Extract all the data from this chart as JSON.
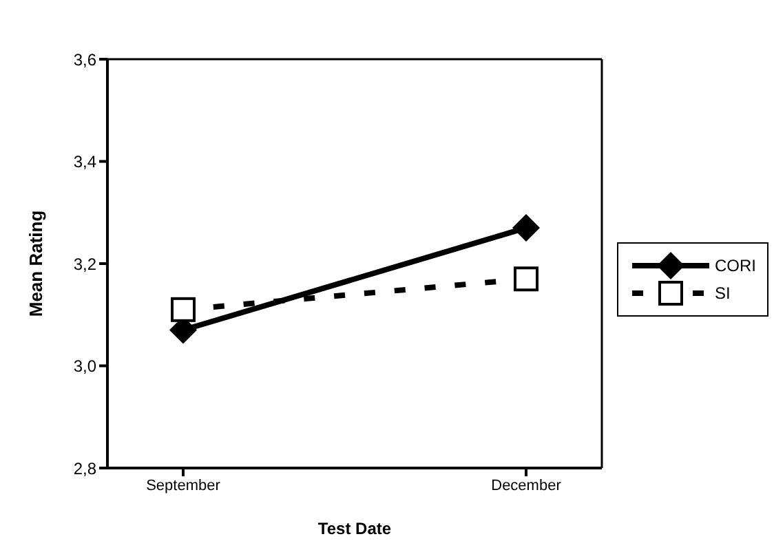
{
  "chart_data": {
    "type": "line",
    "xlabel": "Test Date",
    "ylabel": "Mean Rating",
    "categories": [
      "September",
      "December"
    ],
    "series": [
      {
        "name": "CORI",
        "color": "#000000",
        "values": [
          3.07,
          3.27
        ],
        "marker": "diamond",
        "line_style": "solid"
      },
      {
        "name": "SI",
        "color": "#000000",
        "values": [
          3.11,
          3.17
        ],
        "marker": "square",
        "line_style": "dashed"
      }
    ],
    "ylim": [
      2.8,
      3.6
    ],
    "yticks": [
      {
        "value": 2.8,
        "label": "2,8"
      },
      {
        "value": 3.0,
        "label": "3,0"
      },
      {
        "value": 3.2,
        "label": "3,2"
      },
      {
        "value": 3.4,
        "label": "3,4"
      },
      {
        "value": 3.6,
        "label": "3,6"
      }
    ],
    "grid": false,
    "legend": "right"
  }
}
